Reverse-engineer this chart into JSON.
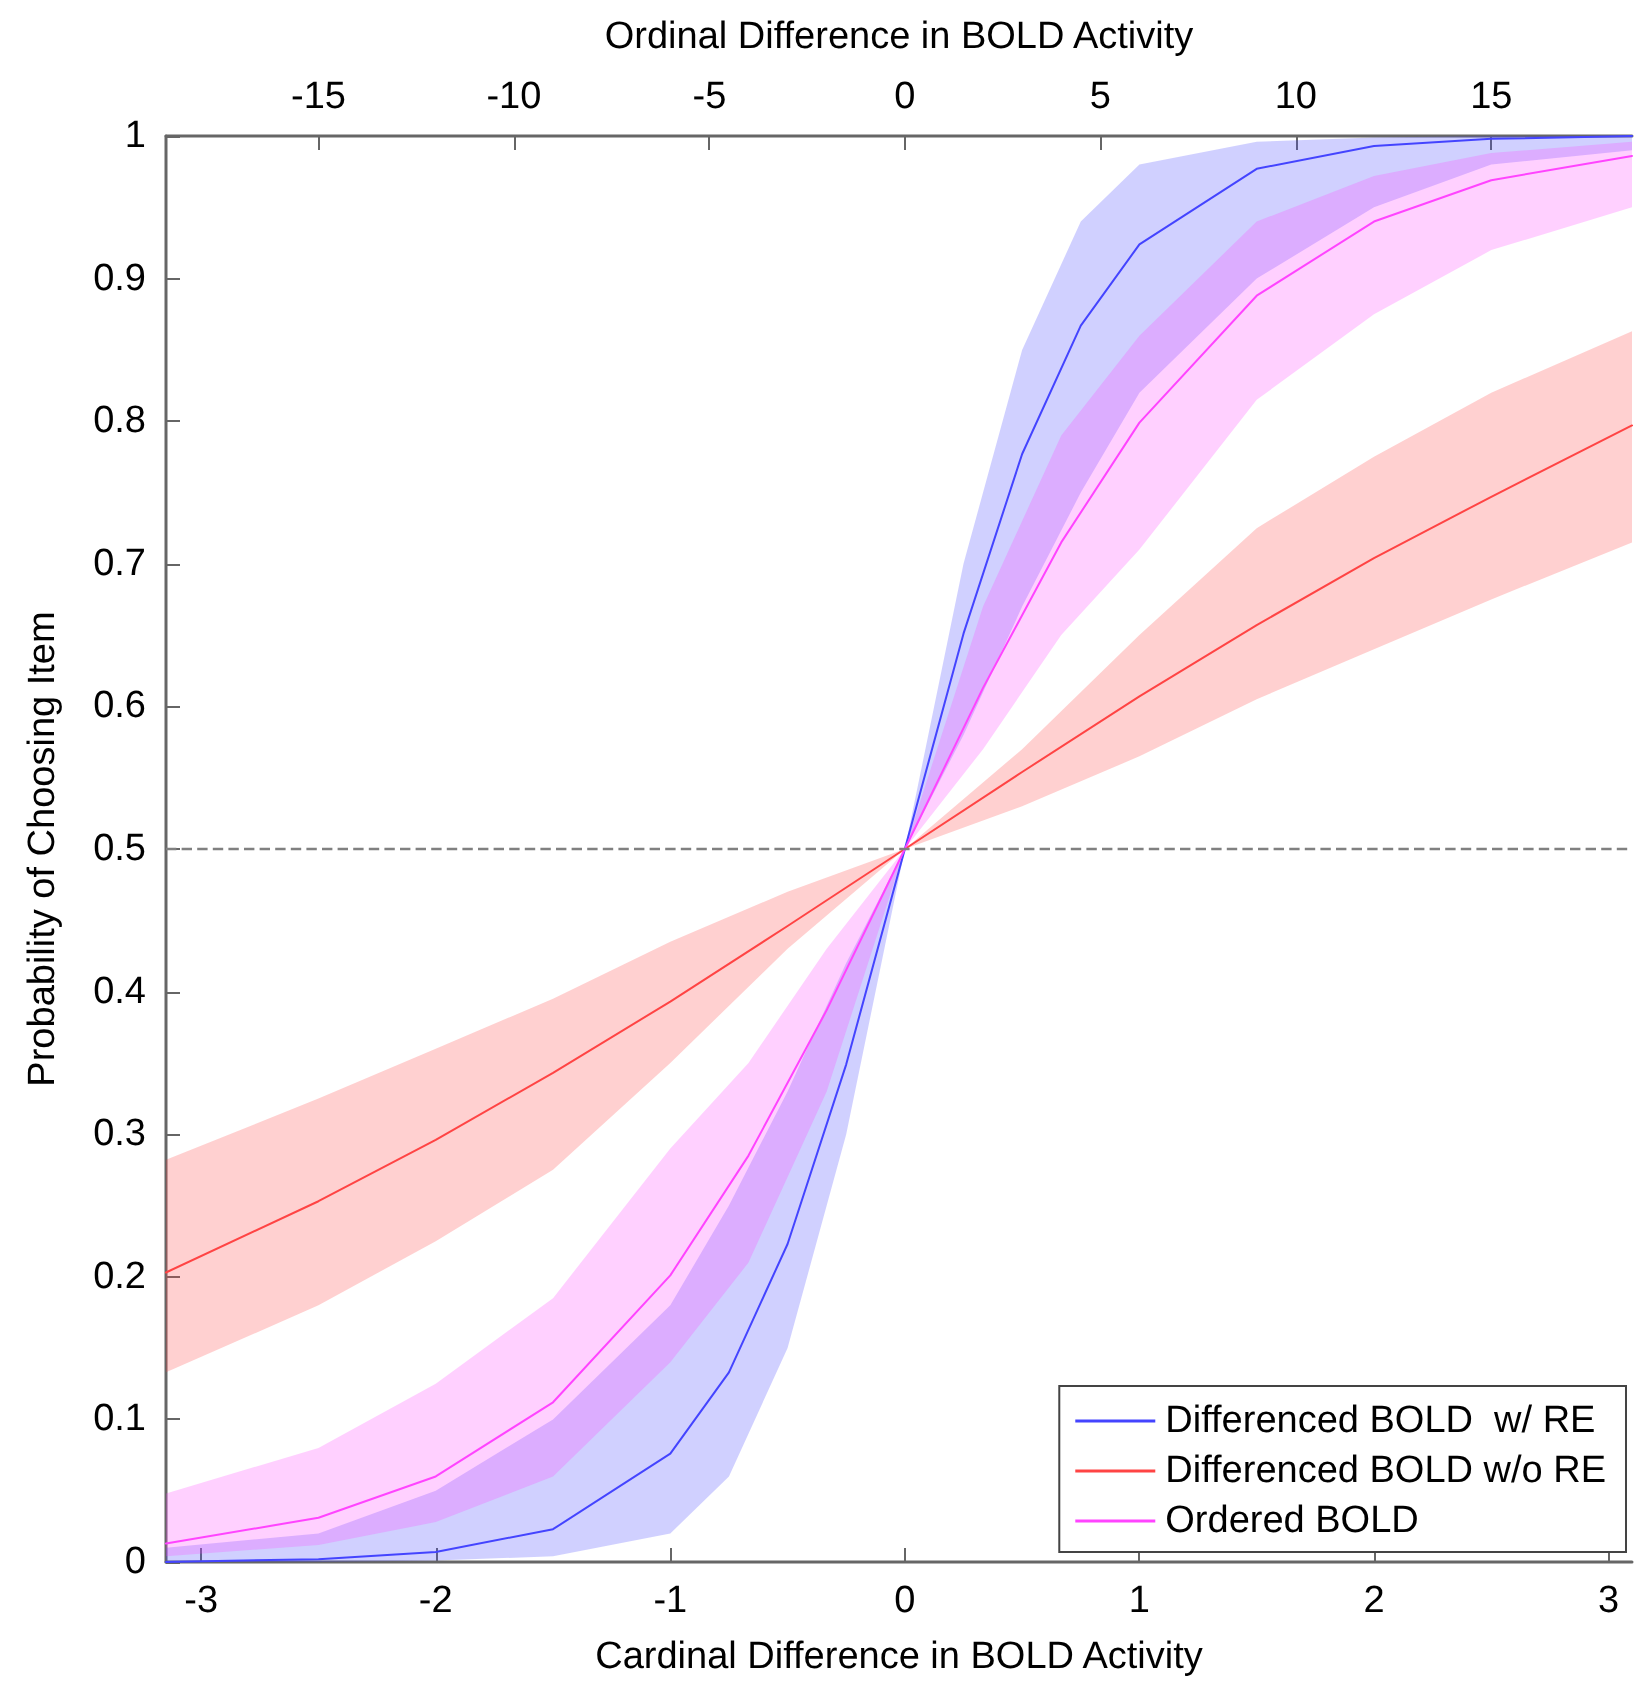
{
  "chart_data": {
    "type": "line",
    "xlabel": "Cardinal Difference in BOLD Activity",
    "x2label": "Ordinal Difference in BOLD Activity",
    "ylabel": "Probability of Choosing Item",
    "xlim": [
      -3.15,
      3.1
    ],
    "xticks": [
      -3,
      -2,
      -1,
      0,
      1,
      2,
      3
    ],
    "x2lim": [
      -18.9,
      18.6
    ],
    "x2ticks": [
      -15,
      -10,
      -5,
      0,
      5,
      10,
      15
    ],
    "ylim": [
      0,
      1
    ],
    "yticks": [
      0,
      0.1,
      0.2,
      0.3,
      0.4,
      0.5,
      0.6,
      0.7,
      0.8,
      0.9,
      1
    ],
    "grid": false,
    "legend": "bottom right",
    "marker": "none",
    "line_style": "solid",
    "ref_lines": [
      {
        "axis": "y",
        "value": 0.5,
        "color": "#808080",
        "line_style": "dashed"
      }
    ],
    "series": [
      {
        "name": "Differenced BOLD  w/ RE",
        "color": "#4444ff",
        "x": [
          -3.15,
          -2.5,
          -2,
          -1.5,
          -1,
          -0.75,
          -0.5,
          -0.25,
          0,
          0.25,
          0.5,
          0.75,
          1,
          1.5,
          2,
          2.5,
          3.1
        ],
        "values": [
          0,
          0.002,
          0.007,
          0.023,
          0.076,
          0.133,
          0.223,
          0.349,
          0.5,
          0.651,
          0.777,
          0.867,
          0.924,
          0.977,
          0.993,
          0.998,
          1
        ],
        "lower": [
          0,
          0,
          0.001,
          0.004,
          0.02,
          0.06,
          0.15,
          0.3,
          0.5,
          0.58,
          0.67,
          0.75,
          0.82,
          0.9,
          0.95,
          0.98,
          0.99
        ],
        "upper": [
          0.01,
          0.02,
          0.05,
          0.1,
          0.18,
          0.25,
          0.33,
          0.42,
          0.5,
          0.7,
          0.85,
          0.94,
          0.98,
          0.996,
          0.999,
          1,
          1
        ]
      },
      {
        "name": "Differenced BOLD w/o RE",
        "color": "#ff4444",
        "x": [
          -3.15,
          -2.5,
          -2,
          -1.5,
          -1,
          -0.5,
          0,
          0.5,
          1,
          1.5,
          2,
          2.5,
          3.1
        ],
        "values": [
          0.203,
          0.253,
          0.296,
          0.343,
          0.393,
          0.446,
          0.5,
          0.554,
          0.607,
          0.657,
          0.704,
          0.747,
          0.797
        ],
        "lower": [
          0.133,
          0.18,
          0.225,
          0.275,
          0.35,
          0.43,
          0.5,
          0.53,
          0.565,
          0.605,
          0.64,
          0.675,
          0.715
        ],
        "upper": [
          0.282,
          0.325,
          0.36,
          0.395,
          0.435,
          0.47,
          0.5,
          0.57,
          0.65,
          0.725,
          0.775,
          0.82,
          0.863
        ]
      },
      {
        "name": "Ordered BOLD",
        "color": "#ff44ff",
        "axis": "x2",
        "x": [
          -18.9,
          -15,
          -12,
          -9,
          -6,
          -4,
          -2,
          0,
          2,
          4,
          6,
          9,
          12,
          15,
          18.6
        ],
        "values": [
          0.013,
          0.031,
          0.06,
          0.112,
          0.201,
          0.285,
          0.387,
          0.5,
          0.613,
          0.715,
          0.799,
          0.888,
          0.94,
          0.969,
          0.986
        ],
        "lower": [
          0.004,
          0.012,
          0.028,
          0.06,
          0.14,
          0.21,
          0.33,
          0.5,
          0.57,
          0.65,
          0.71,
          0.815,
          0.875,
          0.92,
          0.95
        ],
        "upper": [
          0.048,
          0.08,
          0.125,
          0.185,
          0.29,
          0.35,
          0.43,
          0.5,
          0.67,
          0.79,
          0.86,
          0.94,
          0.972,
          0.988,
          0.996
        ]
      }
    ]
  }
}
